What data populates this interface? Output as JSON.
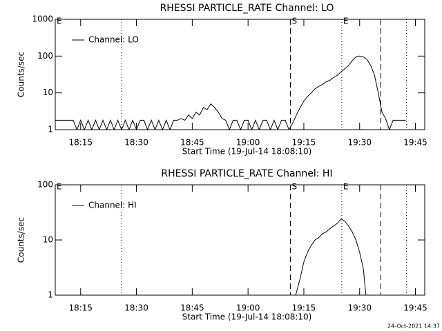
{
  "chart_data": [
    {
      "type": "line",
      "title": "RHESSI PARTICLE_RATE Channel: LO",
      "xlabel": "Start Time (19-Jul-14 18:08:10)",
      "ylabel": "Counts/sec",
      "log_y": true,
      "legend": "upper left",
      "x": [
        8.2,
        13,
        14,
        15,
        16,
        17,
        18,
        19,
        20,
        21,
        22,
        23,
        24,
        25,
        26,
        27,
        28,
        29,
        30,
        31,
        32,
        33,
        34,
        35,
        36,
        37,
        38,
        39,
        40,
        41,
        42,
        43,
        44,
        45,
        46,
        47,
        48,
        49,
        50,
        51,
        52,
        53,
        54,
        55,
        56,
        57,
        58,
        59,
        60,
        61,
        62,
        63,
        64,
        65,
        66,
        67,
        68,
        69,
        70,
        71,
        72,
        73,
        74,
        75,
        76,
        77,
        78,
        79,
        80,
        81,
        82,
        83,
        84,
        85,
        86,
        87,
        88,
        89,
        90,
        91,
        92,
        93,
        94,
        95,
        96,
        97,
        98,
        99,
        100,
        102.4
      ],
      "series": [
        {
          "name": "Channel: LO",
          "color": "#000000",
          "values": [
            1.8,
            1.8,
            1,
            1.8,
            1,
            1.8,
            1,
            1.8,
            1,
            1.8,
            1,
            1.8,
            1,
            1.8,
            1,
            1.8,
            1,
            1.8,
            1,
            1.8,
            1.8,
            1,
            1.8,
            1,
            1.8,
            1,
            1.8,
            1,
            1.8,
            1.8,
            2,
            1.8,
            2.5,
            2,
            3,
            2.5,
            4,
            3.5,
            5,
            4,
            3,
            2,
            1.8,
            1,
            1.8,
            1.8,
            1,
            1.8,
            1.8,
            1,
            1.8,
            1,
            1.8,
            1.8,
            1,
            1.8,
            1,
            1.8,
            1.8,
            1,
            1.5,
            2.5,
            4,
            6,
            8,
            10,
            13,
            15,
            17,
            20,
            22,
            26,
            30,
            37,
            45,
            55,
            75,
            95,
            100,
            95,
            80,
            55,
            30,
            10,
            3,
            2,
            1,
            1.8,
            1.8,
            1.8
          ]
        }
      ],
      "xlim": [
        8.17,
        107.5
      ],
      "xticks": [
        {
          "value": 15,
          "label": "18:15"
        },
        {
          "value": 30,
          "label": "18:30"
        },
        {
          "value": 45,
          "label": "18:45"
        },
        {
          "value": 60,
          "label": "19:00"
        },
        {
          "value": 75,
          "label": "19:15"
        },
        {
          "value": 90,
          "label": "19:30"
        },
        {
          "value": 105,
          "label": "19:45"
        }
      ],
      "ylim": [
        1,
        1000
      ],
      "yticks": [
        1,
        10,
        100,
        1000
      ],
      "markers": [
        {
          "x": 8.17,
          "style": "dashed",
          "label": "E"
        },
        {
          "x": 26.0,
          "style": "dotted"
        },
        {
          "x": 71.4,
          "style": "dashed",
          "label": "S"
        },
        {
          "x": 85.2,
          "style": "dotted",
          "label": "E"
        },
        {
          "x": 95.7,
          "style": "dashed"
        },
        {
          "x": 102.6,
          "style": "dotted"
        }
      ]
    },
    {
      "type": "line",
      "title": "RHESSI PARTICLE_RATE Channel: HI",
      "xlabel": "Start Time (19-Jul-14 18:08:10)",
      "ylabel": "Counts/sec",
      "log_y": true,
      "legend": "upper left",
      "x": [
        72.8,
        74,
        75,
        76,
        77,
        78,
        79,
        80,
        81,
        82,
        83,
        84,
        85,
        86,
        87,
        88,
        89,
        90,
        91,
        91.7
      ],
      "series": [
        {
          "name": "Channel: HI",
          "color": "#000000",
          "values": [
            1,
            2,
            4,
            6,
            8,
            10,
            11,
            13,
            14,
            16,
            18,
            20,
            24,
            22,
            18,
            14,
            10,
            6,
            3,
            1
          ]
        }
      ],
      "xlim": [
        8.17,
        107.5
      ],
      "xticks": [
        {
          "value": 15,
          "label": "18:15"
        },
        {
          "value": 30,
          "label": "18:30"
        },
        {
          "value": 45,
          "label": "18:45"
        },
        {
          "value": 60,
          "label": "19:00"
        },
        {
          "value": 75,
          "label": "19:15"
        },
        {
          "value": 90,
          "label": "19:30"
        },
        {
          "value": 105,
          "label": "19:45"
        }
      ],
      "ylim": [
        1,
        100
      ],
      "yticks": [
        1,
        10,
        100
      ],
      "markers": [
        {
          "x": 8.17,
          "style": "dashed",
          "label": "E"
        },
        {
          "x": 26.0,
          "style": "dotted"
        },
        {
          "x": 71.4,
          "style": "dashed",
          "label": "S"
        },
        {
          "x": 85.2,
          "style": "dotted",
          "label": "E"
        },
        {
          "x": 95.7,
          "style": "dashed"
        },
        {
          "x": 102.6,
          "style": "dotted"
        }
      ]
    }
  ],
  "footer": "24-Oct-2021 14:37"
}
